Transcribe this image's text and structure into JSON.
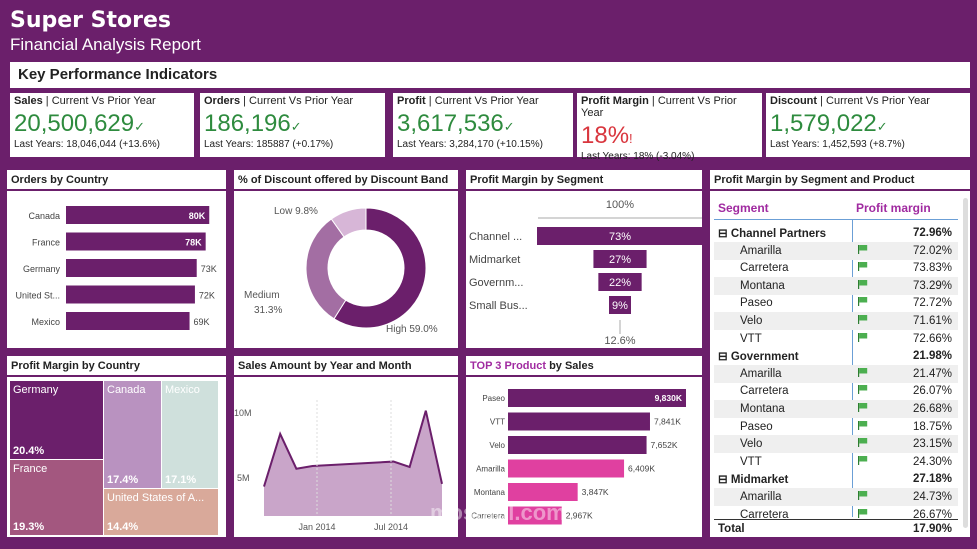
{
  "header": {
    "title": "Super Stores",
    "subtitle": "Financial Analysis Report"
  },
  "kpi_bar": {
    "label": "Key Performance Indicators"
  },
  "kpis": [
    {
      "name": "Sales",
      "suffix": " | Current Vs Prior Year",
      "value": "20,500,629",
      "indicator": "✓",
      "sub": "Last Years: 18,046,044 (+13.6%)",
      "status_color": "#2e8b3e"
    },
    {
      "name": "Orders",
      "suffix": " | Current Vs Prior Year",
      "value": "186,196",
      "indicator": "✓",
      "sub": "Last Years: 185887 (+0.17%)",
      "status_color": "#2e8b3e"
    },
    {
      "name": "Profit",
      "suffix": " | Current Vs Prior Year",
      "value": "3,617,536",
      "indicator": "✓",
      "sub": "Last Years: 3,284,170 (+10.15%)",
      "status_color": "#2e8b3e"
    },
    {
      "name": "Profit Margin",
      "suffix": " | Current Vs Prior Year",
      "value": "18%",
      "indicator": "!",
      "sub": "Last Years: 18% (-3.04%)",
      "status_color": "#d9363e"
    },
    {
      "name": "Discount",
      "suffix": " | Current Vs Prior Year",
      "value": "1,579,022",
      "indicator": "✓",
      "sub": "Last Years: 1,452,593 (+8.7%)",
      "status_color": "#2e8b3e"
    }
  ],
  "panels": {
    "orders_by_country": "Orders by Country",
    "discount_band": "% of Discount offered by Discount Band",
    "margin_by_segment": "Profit Margin by Segment",
    "margin_segment_product": "Profit Margin by Segment and Product",
    "margin_by_country": "Profit Margin by Country",
    "sales_year_month": "Sales Amount by Year and Month",
    "top3_highlight": "TOP 3 Product",
    "top3_rest": " by Sales"
  },
  "chart_data": [
    {
      "id": "orders_by_country",
      "type": "bar",
      "categories": [
        "Canada",
        "France",
        "Germany",
        "United St...",
        "Mexico"
      ],
      "values": [
        80000,
        78000,
        73000,
        72000,
        69000
      ],
      "labels": [
        "80K",
        "78K",
        "73K",
        "72K",
        "69K"
      ],
      "color": "#6b1f6b"
    },
    {
      "id": "discount_band",
      "type": "pie",
      "slices": [
        {
          "label": "High",
          "value": 59.0,
          "text": "High 59.0%",
          "color": "#6b1f6b"
        },
        {
          "label": "Medium",
          "value": 31.3,
          "text_line1": "Medium",
          "text_line2": "31.3%",
          "color": "#a36ea3"
        },
        {
          "label": "Low",
          "value": 9.8,
          "text": "Low 9.8%",
          "color": "#d7b6d7"
        }
      ]
    },
    {
      "id": "margin_by_segment",
      "type": "bar",
      "reference_label": "100%",
      "categories": [
        "Channel ...",
        "Midmarket",
        "Governm...",
        "Small Bus..."
      ],
      "values": [
        73,
        27,
        22,
        9
      ],
      "labels": [
        "73%",
        "27%",
        "22%",
        "9%"
      ],
      "bottom_label": "12.6%",
      "color": "#6b1f6b"
    },
    {
      "id": "margin_by_country",
      "type": "heatmap",
      "cells": [
        {
          "name": "Germany",
          "value": "20.4%",
          "color": "#6b1f6b"
        },
        {
          "name": "Canada",
          "value": "17.4%",
          "color": "#b992c0"
        },
        {
          "name": "Mexico",
          "value": "17.1%",
          "color": "#cfe0dc"
        },
        {
          "name": "France",
          "value": "19.3%",
          "color": "#a3577f"
        },
        {
          "name": "United States of A...",
          "value": "14.4%",
          "color": "#d9a99a"
        }
      ]
    },
    {
      "id": "sales_year_month",
      "type": "area",
      "y_ticks": [
        "10M",
        "5M"
      ],
      "x_ticks": [
        "Jan 2014",
        "Jul 2014"
      ],
      "values": [
        3.3,
        9.2,
        5.3,
        5.6,
        5.7,
        5.8,
        5.9,
        6.0,
        6.1,
        5.5,
        11.8,
        3.6
      ],
      "ylim": [
        0,
        13
      ],
      "color": "#c9a5c9",
      "line_color": "#6b1f6b"
    },
    {
      "id": "top3_products",
      "type": "bar",
      "categories": [
        "Paseo",
        "VTT",
        "Velo",
        "Amarilla",
        "Montana",
        "Carretera"
      ],
      "values": [
        9830,
        7841,
        7652,
        6409,
        3847,
        2967
      ],
      "labels": [
        "9,830K",
        "7,841K",
        "7,652K",
        "6,409K",
        "3,847K",
        "2,967K"
      ],
      "colors": [
        "#6b1f6b",
        "#6b1f6b",
        "#6b1f6b",
        "#e040a0",
        "#e040a0",
        "#e040a0"
      ]
    }
  ],
  "matrix": {
    "col_segment": "Segment",
    "col_margin": "Profit margin",
    "rows": [
      {
        "type": "group",
        "label": "Channel Partners",
        "value": "72.96%",
        "toggle": "⊟"
      },
      {
        "type": "item",
        "label": "Amarilla",
        "value": "72.02%"
      },
      {
        "type": "item",
        "label": "Carretera",
        "value": "73.83%"
      },
      {
        "type": "item",
        "label": "Montana",
        "value": "73.29%"
      },
      {
        "type": "item",
        "label": "Paseo",
        "value": "72.72%"
      },
      {
        "type": "item",
        "label": "Velo",
        "value": "71.61%"
      },
      {
        "type": "item",
        "label": "VTT",
        "value": "72.66%"
      },
      {
        "type": "group",
        "label": "Government",
        "value": "21.98%",
        "toggle": "⊟"
      },
      {
        "type": "item",
        "label": "Amarilla",
        "value": "21.47%"
      },
      {
        "type": "item",
        "label": "Carretera",
        "value": "26.07%"
      },
      {
        "type": "item",
        "label": "Montana",
        "value": "26.68%"
      },
      {
        "type": "item",
        "label": "Paseo",
        "value": "18.75%"
      },
      {
        "type": "item",
        "label": "Velo",
        "value": "23.15%"
      },
      {
        "type": "item",
        "label": "VTT",
        "value": "24.30%"
      },
      {
        "type": "group",
        "label": "Midmarket",
        "value": "27.18%",
        "toggle": "⊟"
      },
      {
        "type": "item",
        "label": "Amarilla",
        "value": "24.73%"
      },
      {
        "type": "item",
        "label": "Carretera",
        "value": "26.67%"
      }
    ],
    "total_label": "Total",
    "total_value": "17.90%"
  },
  "watermark": {
    "text": "mostaql.com"
  }
}
